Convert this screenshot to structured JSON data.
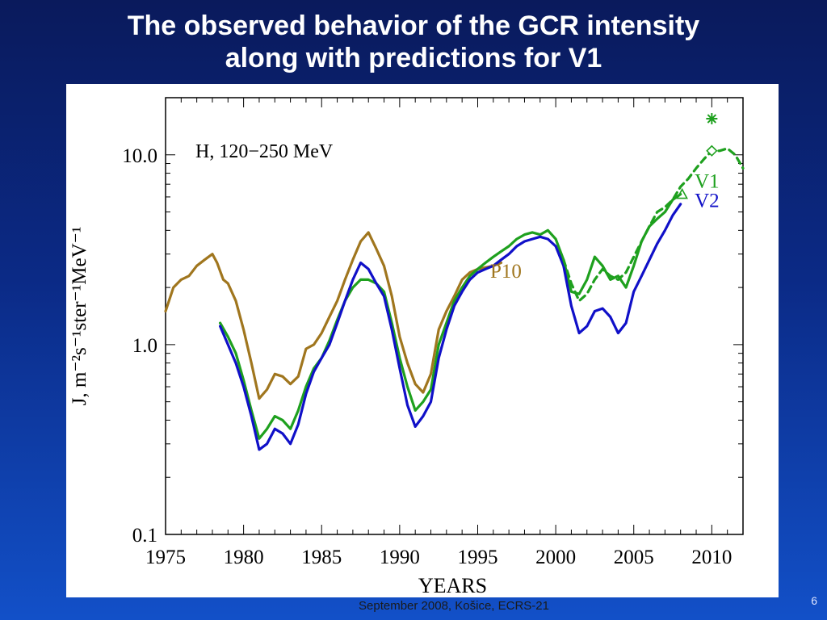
{
  "slide": {
    "title_line1": "The observed behavior of the GCR intensity",
    "title_line2": "along with predictions for V1",
    "footer": "September 2008, Košice, ECRS-21",
    "page_number": "6"
  },
  "colors": {
    "background": "#0b2a86",
    "p10": "#a0761e",
    "v1": "#1ea01e",
    "v2": "#1010c8",
    "axes": "#000000"
  },
  "chart_data": {
    "type": "line",
    "title": "",
    "annotation": "H, 120−250 MeV",
    "xlabel": "YEARS",
    "ylabel": "J, m⁻²s⁻¹ster⁻¹MeV⁻¹",
    "xlim": [
      1975,
      2012
    ],
    "ylim": [
      0.1,
      20
    ],
    "yscale": "log",
    "x_ticks": [
      "1975",
      "1980",
      "1985",
      "1990",
      "1995",
      "2000",
      "2005",
      "2010"
    ],
    "y_ticks": [
      "0.1",
      "1.0",
      "10.0"
    ],
    "series": [
      {
        "name": "P10",
        "color": "#a0761e",
        "style": "solid",
        "x": [
          1975.0,
          1975.5,
          1976.0,
          1976.5,
          1977.0,
          1977.5,
          1978.0,
          1978.3,
          1978.7,
          1979.0,
          1979.5,
          1980.0,
          1980.5,
          1981.0,
          1981.5,
          1982.0,
          1982.5,
          1983.0,
          1983.5,
          1984.0,
          1984.5,
          1985.0,
          1985.5,
          1986.0,
          1986.5,
          1987.0,
          1987.5,
          1988.0,
          1988.5,
          1989.0,
          1989.5,
          1990.0,
          1990.5,
          1991.0,
          1991.5,
          1992.0,
          1992.5,
          1993.0,
          1993.5,
          1994.0,
          1994.5,
          1995.0,
          1995.5,
          1996.0,
          1996.5
        ],
        "y": [
          1.5,
          2.0,
          2.2,
          2.3,
          2.6,
          2.8,
          3.0,
          2.7,
          2.2,
          2.1,
          1.7,
          1.2,
          0.8,
          0.52,
          0.58,
          0.7,
          0.68,
          0.62,
          0.68,
          0.95,
          1.0,
          1.15,
          1.4,
          1.7,
          2.2,
          2.8,
          3.5,
          3.9,
          3.2,
          2.6,
          1.8,
          1.1,
          0.8,
          0.62,
          0.56,
          0.7,
          1.2,
          1.5,
          1.8,
          2.2,
          2.4,
          2.5,
          2.55,
          2.6,
          2.7
        ]
      },
      {
        "name": "V1",
        "color": "#1ea01e",
        "style": "solid",
        "x": [
          1978.5,
          1979.0,
          1979.5,
          1980.0,
          1980.5,
          1981.0,
          1981.5,
          1982.0,
          1982.5,
          1983.0,
          1983.5,
          1984.0,
          1984.5,
          1985.0,
          1985.5,
          1986.0,
          1986.5,
          1987.0,
          1987.5,
          1988.0,
          1988.5,
          1989.0,
          1989.5,
          1990.0,
          1990.5,
          1991.0,
          1991.5,
          1992.0,
          1992.5,
          1993.0,
          1993.5,
          1994.0,
          1994.5,
          1995.0,
          1995.5,
          1996.0,
          1996.5,
          1997.0,
          1997.5,
          1998.0,
          1998.5,
          1999.0,
          1999.5,
          2000.0,
          2000.5,
          2001.0,
          2001.5,
          2002.0,
          2002.5,
          2003.0,
          2003.5,
          2004.0,
          2004.5,
          2005.0,
          2005.5,
          2006.0,
          2006.5,
          2007.0,
          2007.5,
          2008.0
        ],
        "y": [
          1.3,
          1.1,
          0.9,
          0.65,
          0.45,
          0.32,
          0.36,
          0.42,
          0.4,
          0.36,
          0.45,
          0.6,
          0.75,
          0.85,
          1.05,
          1.35,
          1.7,
          2.0,
          2.2,
          2.2,
          2.1,
          1.9,
          1.3,
          0.85,
          0.6,
          0.45,
          0.5,
          0.58,
          1.0,
          1.3,
          1.7,
          2.0,
          2.3,
          2.5,
          2.7,
          2.9,
          3.1,
          3.3,
          3.6,
          3.8,
          3.9,
          3.8,
          4.0,
          3.6,
          2.8,
          1.9,
          1.85,
          2.2,
          2.9,
          2.6,
          2.2,
          2.3,
          2.0,
          2.6,
          3.5,
          4.2,
          4.6,
          5.0,
          5.8,
          6.2
        ]
      },
      {
        "name": "V2",
        "color": "#1010c8",
        "style": "solid",
        "x": [
          1978.5,
          1979.0,
          1979.5,
          1980.0,
          1980.5,
          1981.0,
          1981.5,
          1982.0,
          1982.5,
          1983.0,
          1983.5,
          1984.0,
          1984.5,
          1985.0,
          1985.5,
          1986.0,
          1986.5,
          1987.0,
          1987.5,
          1988.0,
          1988.5,
          1989.0,
          1989.5,
          1990.0,
          1990.5,
          1991.0,
          1991.5,
          1992.0,
          1992.5,
          1993.0,
          1993.5,
          1994.0,
          1994.5,
          1995.0,
          1995.5,
          1996.0,
          1996.5,
          1997.0,
          1997.5,
          1998.0,
          1998.5,
          1999.0,
          1999.5,
          2000.0,
          2000.5,
          2001.0,
          2001.5,
          2002.0,
          2002.5,
          2003.0,
          2003.5,
          2004.0,
          2004.5,
          2005.0,
          2005.5,
          2006.0,
          2006.5,
          2007.0,
          2007.5,
          2008.0
        ],
        "y": [
          1.25,
          1.0,
          0.8,
          0.6,
          0.42,
          0.28,
          0.3,
          0.36,
          0.34,
          0.3,
          0.38,
          0.55,
          0.72,
          0.85,
          1.0,
          1.3,
          1.7,
          2.2,
          2.7,
          2.5,
          2.1,
          1.8,
          1.2,
          0.75,
          0.48,
          0.37,
          0.42,
          0.5,
          0.85,
          1.2,
          1.6,
          1.9,
          2.2,
          2.4,
          2.5,
          2.6,
          2.8,
          3.0,
          3.3,
          3.5,
          3.6,
          3.7,
          3.6,
          3.3,
          2.6,
          1.6,
          1.15,
          1.25,
          1.5,
          1.55,
          1.4,
          1.15,
          1.3,
          1.9,
          2.3,
          2.8,
          3.4,
          4.0,
          4.8,
          5.5
        ]
      },
      {
        "name": "",
        "color": "#1ea01e",
        "style": "dashed",
        "x": [
          2000.5,
          2001.0,
          2001.5,
          2002.0,
          2002.5,
          2003.0,
          2003.5,
          2004.0,
          2004.5,
          2005.0,
          2005.5,
          2006.0,
          2006.5,
          2007.0,
          2007.5,
          2008.0,
          2008.5,
          2009.0,
          2009.5,
          2010.0,
          2010.5,
          2011.0,
          2011.5,
          2012.0
        ],
        "y": [
          2.8,
          2.1,
          1.7,
          1.85,
          2.2,
          2.5,
          2.3,
          2.2,
          2.4,
          2.9,
          3.5,
          4.2,
          5.0,
          5.3,
          5.8,
          6.8,
          7.5,
          8.5,
          9.5,
          10.5,
          10.5,
          10.8,
          10.0,
          8.5
        ]
      }
    ],
    "labels": [
      {
        "text": "P10",
        "color": "#a0761e"
      },
      {
        "text": "V1",
        "color": "#1ea01e"
      },
      {
        "text": "V2",
        "color": "#1010c8"
      }
    ],
    "markers": [
      {
        "type": "triangle",
        "x": 2008.1,
        "y": 6.2,
        "color": "#1ea01e"
      },
      {
        "type": "diamond",
        "x": 2010.0,
        "y": 10.5,
        "color": "#1ea01e"
      },
      {
        "type": "asterisk",
        "x": 2010.0,
        "y": 15.5,
        "color": "#1ea01e"
      }
    ]
  }
}
